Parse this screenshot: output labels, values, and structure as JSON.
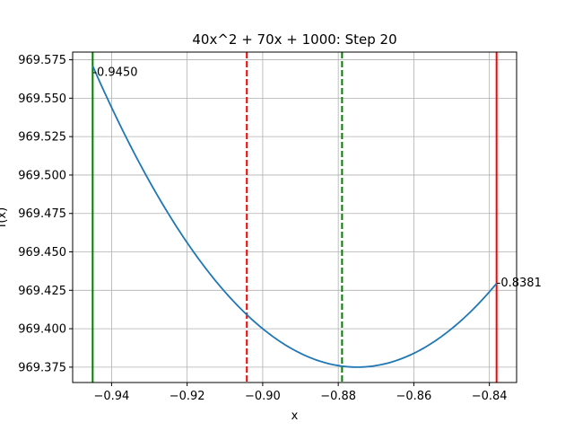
{
  "chart_data": {
    "type": "line",
    "title": "40x^2 + 70x + 1000: Step 20",
    "xlabel": "x",
    "ylabel": "f(x)",
    "xlim": [
      -0.9503,
      -0.8328
    ],
    "ylim": [
      969.365,
      969.58
    ],
    "xticks": [
      -0.94,
      -0.92,
      -0.9,
      -0.88,
      -0.86,
      -0.84
    ],
    "xtick_labels": [
      "−0.94",
      "−0.92",
      "−0.90",
      "−0.88",
      "−0.86",
      "−0.84"
    ],
    "yticks": [
      969.375,
      969.4,
      969.425,
      969.45,
      969.475,
      969.5,
      969.525,
      969.55,
      969.575
    ],
    "ytick_labels": [
      "969.375",
      "969.400",
      "969.425",
      "969.450",
      "969.475",
      "969.500",
      "969.525",
      "969.550",
      "969.575"
    ],
    "grid": true,
    "series": [
      {
        "function": "40x^2 + 70x + 1000",
        "x_range": [
          -0.945,
          -0.8381
        ],
        "color": "#1f77b4"
      }
    ],
    "vlines": [
      {
        "x": -0.945,
        "color": "#008000",
        "style": "solid"
      },
      {
        "x": -0.8381,
        "color": "#ff0000",
        "style": "solid"
      },
      {
        "x": -0.9042,
        "color": "#ff0000",
        "style": "dashed"
      },
      {
        "x": -0.879,
        "color": "#008000",
        "style": "dashed"
      }
    ],
    "annotations": [
      {
        "text": "-0.9450",
        "x": -0.945,
        "y": 969.5675
      },
      {
        "text": "-0.8381",
        "x": -0.8381,
        "y": 969.4305
      }
    ]
  }
}
